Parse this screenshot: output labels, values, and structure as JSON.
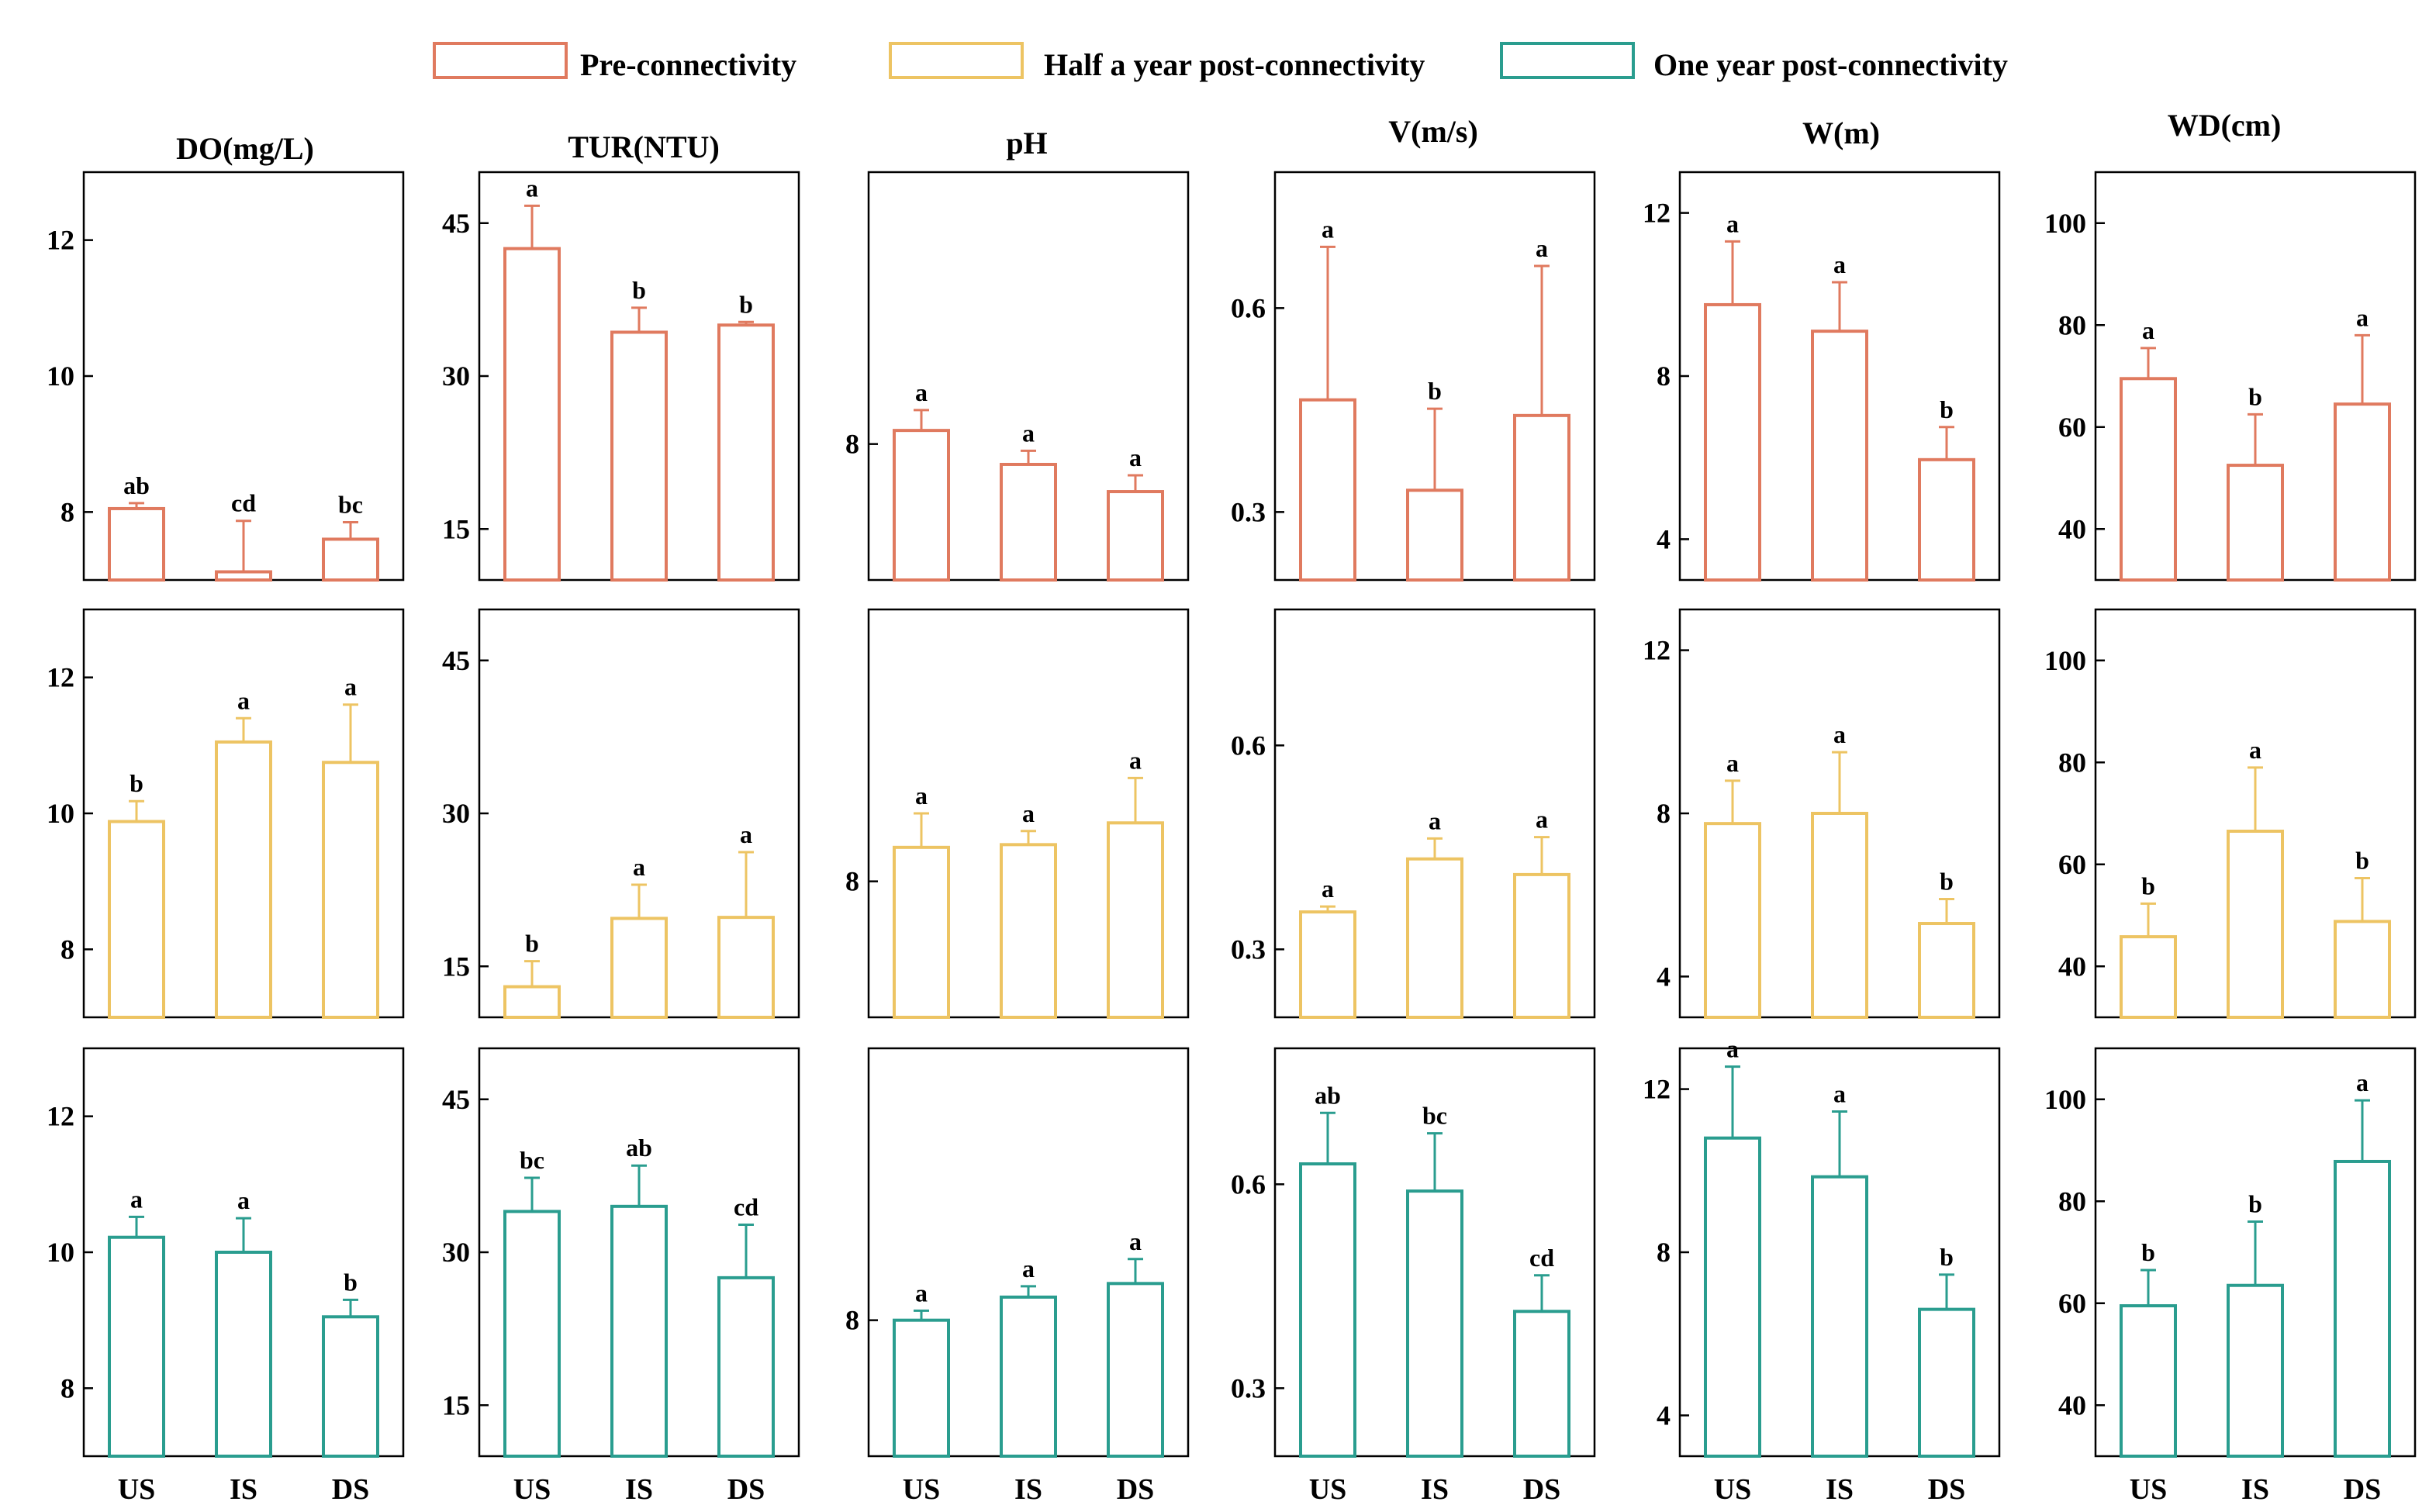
{
  "legend": [
    {
      "label": "Pre-connectivity",
      "color": "#e07a5f"
    },
    {
      "label": "Half a year post-connectivity",
      "color": "#edc463"
    },
    {
      "label": "One year post-connectivity",
      "color": "#2a9d8f"
    }
  ],
  "chart_data": {
    "type": "bar",
    "categories": [
      "US",
      "IS",
      "DS"
    ],
    "periods": [
      "Pre-connectivity",
      "Half a year post-connectivity",
      "One year post-connectivity"
    ],
    "panels": [
      {
        "title": "DO(mg/L)",
        "ylim": [
          7,
          13
        ],
        "ticks": [
          8,
          10,
          12
        ],
        "rows": [
          {
            "values": [
              8.05,
              7.12,
              7.6
            ],
            "errors": [
              0.08,
              0.75,
              0.25
            ],
            "labels": [
              "ab",
              "cd",
              "bc"
            ]
          },
          {
            "values": [
              9.88,
              11.05,
              10.75
            ],
            "errors": [
              0.3,
              0.35,
              0.85
            ],
            "labels": [
              "b",
              "a",
              "a"
            ]
          },
          {
            "values": [
              10.22,
              10.0,
              9.05
            ],
            "errors": [
              0.3,
              0.5,
              0.25
            ],
            "labels": [
              "a",
              "a",
              "b"
            ]
          }
        ]
      },
      {
        "title": "TUR(NTU)",
        "ylim": [
          10,
          50
        ],
        "ticks": [
          15,
          30,
          45
        ],
        "rows": [
          {
            "values": [
              42.5,
              34.3,
              35.0
            ],
            "errors": [
              4.2,
              2.4,
              0.3
            ],
            "labels": [
              "a",
              "b",
              "b"
            ]
          },
          {
            "values": [
              13.0,
              19.7,
              19.8
            ],
            "errors": [
              2.5,
              3.3,
              6.4
            ],
            "labels": [
              "b",
              "a",
              "a"
            ]
          },
          {
            "values": [
              34.0,
              34.5,
              27.5
            ],
            "errors": [
              3.3,
              4.0,
              5.2
            ],
            "labels": [
              "bc",
              "ab",
              "cd"
            ]
          }
        ]
      },
      {
        "title": "pH",
        "ylim": [
          7,
          10
        ],
        "ticks": [
          8
        ],
        "rows": [
          {
            "values": [
              8.1,
              7.85,
              7.65
            ],
            "errors": [
              0.15,
              0.1,
              0.12
            ],
            "labels": [
              "a",
              "a",
              "a"
            ]
          },
          {
            "values": [
              8.25,
              8.27,
              8.43
            ],
            "errors": [
              0.25,
              0.1,
              0.33
            ],
            "labels": [
              "a",
              "a",
              "a"
            ]
          },
          {
            "values": [
              8.0,
              8.17,
              8.27
            ],
            "errors": [
              0.07,
              0.08,
              0.18
            ],
            "labels": [
              "a",
              "a",
              "a"
            ]
          }
        ]
      },
      {
        "title": "V(m/s)",
        "ylim": [
          0.2,
          0.8
        ],
        "ticks": [
          0.3,
          0.6
        ],
        "rows": [
          {
            "values": [
              0.465,
              0.332,
              0.442
            ],
            "errors": [
              0.225,
              0.12,
              0.22
            ],
            "labels": [
              "a",
              "b",
              "a"
            ]
          },
          {
            "values": [
              0.355,
              0.433,
              0.41
            ],
            "errors": [
              0.008,
              0.03,
              0.055
            ],
            "labels": [
              "a",
              "a",
              "a"
            ]
          },
          {
            "values": [
              0.63,
              0.59,
              0.413
            ],
            "errors": [
              0.075,
              0.085,
              0.053
            ],
            "labels": [
              "ab",
              "bc",
              "cd"
            ]
          }
        ]
      },
      {
        "title": "W(m)",
        "ylim": [
          3,
          13
        ],
        "ticks": [
          4,
          8,
          12
        ],
        "rows": [
          {
            "values": [
              9.75,
              9.1,
              5.95
            ],
            "errors": [
              1.55,
              1.2,
              0.8
            ],
            "labels": [
              "a",
              "a",
              "b"
            ]
          },
          {
            "values": [
              7.75,
              8.0,
              5.3
            ],
            "errors": [
              1.05,
              1.5,
              0.6
            ],
            "labels": [
              "a",
              "a",
              "b"
            ]
          },
          {
            "values": [
              10.8,
              9.85,
              6.6
            ],
            "errors": [
              1.75,
              1.6,
              0.85
            ],
            "labels": [
              "a",
              "a",
              "b"
            ]
          }
        ]
      },
      {
        "title": "WD(cm)",
        "ylim": [
          30,
          110
        ],
        "ticks": [
          40,
          60,
          80,
          100
        ],
        "rows": [
          {
            "values": [
              69.5,
              52.5,
              64.5
            ],
            "errors": [
              6.0,
              10.0,
              13.5
            ],
            "labels": [
              "a",
              "b",
              "a"
            ]
          },
          {
            "values": [
              45.8,
              66.5,
              48.8
            ],
            "errors": [
              6.5,
              12.5,
              8.5
            ],
            "labels": [
              "b",
              "a",
              "b"
            ]
          },
          {
            "values": [
              59.5,
              63.5,
              87.8
            ],
            "errors": [
              7.0,
              12.5,
              12.0
            ],
            "labels": [
              "b",
              "b",
              "a"
            ]
          }
        ]
      }
    ]
  }
}
